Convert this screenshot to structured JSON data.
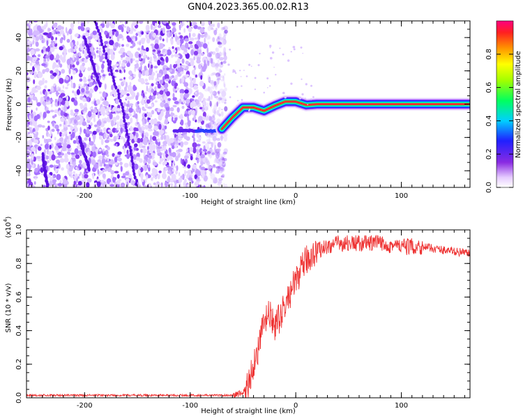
{
  "figure": {
    "title": "GN04.2023.365.00.02.R13"
  },
  "colors": {
    "line": "#ee3333",
    "axis": "#000000",
    "background": "#ffffff"
  },
  "chart_data": [
    {
      "type": "heatmap",
      "title": "GN04.2023.365.00.02.R13",
      "xlabel": "Height of straight line (km)",
      "ylabel": "Frequency (Hz)",
      "xlim": [
        -255,
        165
      ],
      "ylim": [
        -50,
        50
      ],
      "xticks": [
        -200,
        -100,
        0,
        100
      ],
      "yticks": [
        -40,
        -20,
        0,
        20,
        40
      ],
      "colorbar": {
        "label": "Normalized spectral amplitude",
        "range": [
          0,
          1
        ],
        "ticks": [
          "0.0",
          "0.2",
          "0.4",
          "0.6",
          "0.8"
        ]
      },
      "noise_region_x": [
        -255,
        -70
      ],
      "ridge": {
        "x": [
          -70,
          -60,
          -50,
          -40,
          -30,
          -20,
          -10,
          0,
          10,
          20,
          165
        ],
        "frequency": [
          -15,
          -8,
          -2,
          -2,
          -4,
          -1,
          1.5,
          1.5,
          -0.5,
          0,
          0
        ]
      }
    },
    {
      "type": "line",
      "xlabel": "Height of straight line (km)",
      "ylabel": "SNR (10 * v/v)",
      "yscale_label": "(x10",
      "yscale_exp": "4",
      "xlim": [
        -255,
        165
      ],
      "ylim": [
        0,
        1.0
      ],
      "xticks": [
        -200,
        -100,
        0,
        100
      ],
      "yticks": [
        "0.0",
        "0.2",
        "0.4",
        "0.6",
        "0.8",
        "1.0"
      ],
      "series": [
        {
          "x": [
            -255,
            -60,
            -50,
            -45,
            -40,
            -35,
            -30,
            -25,
            -20,
            -15,
            -10,
            0,
            10,
            20,
            30,
            40,
            50,
            60,
            80,
            100,
            120,
            140,
            165
          ],
          "values": [
            0.015,
            0.015,
            0.03,
            0.08,
            0.2,
            0.3,
            0.45,
            0.5,
            0.42,
            0.48,
            0.55,
            0.7,
            0.82,
            0.88,
            0.9,
            0.92,
            0.92,
            0.92,
            0.92,
            0.9,
            0.9,
            0.88,
            0.86
          ]
        }
      ]
    }
  ]
}
